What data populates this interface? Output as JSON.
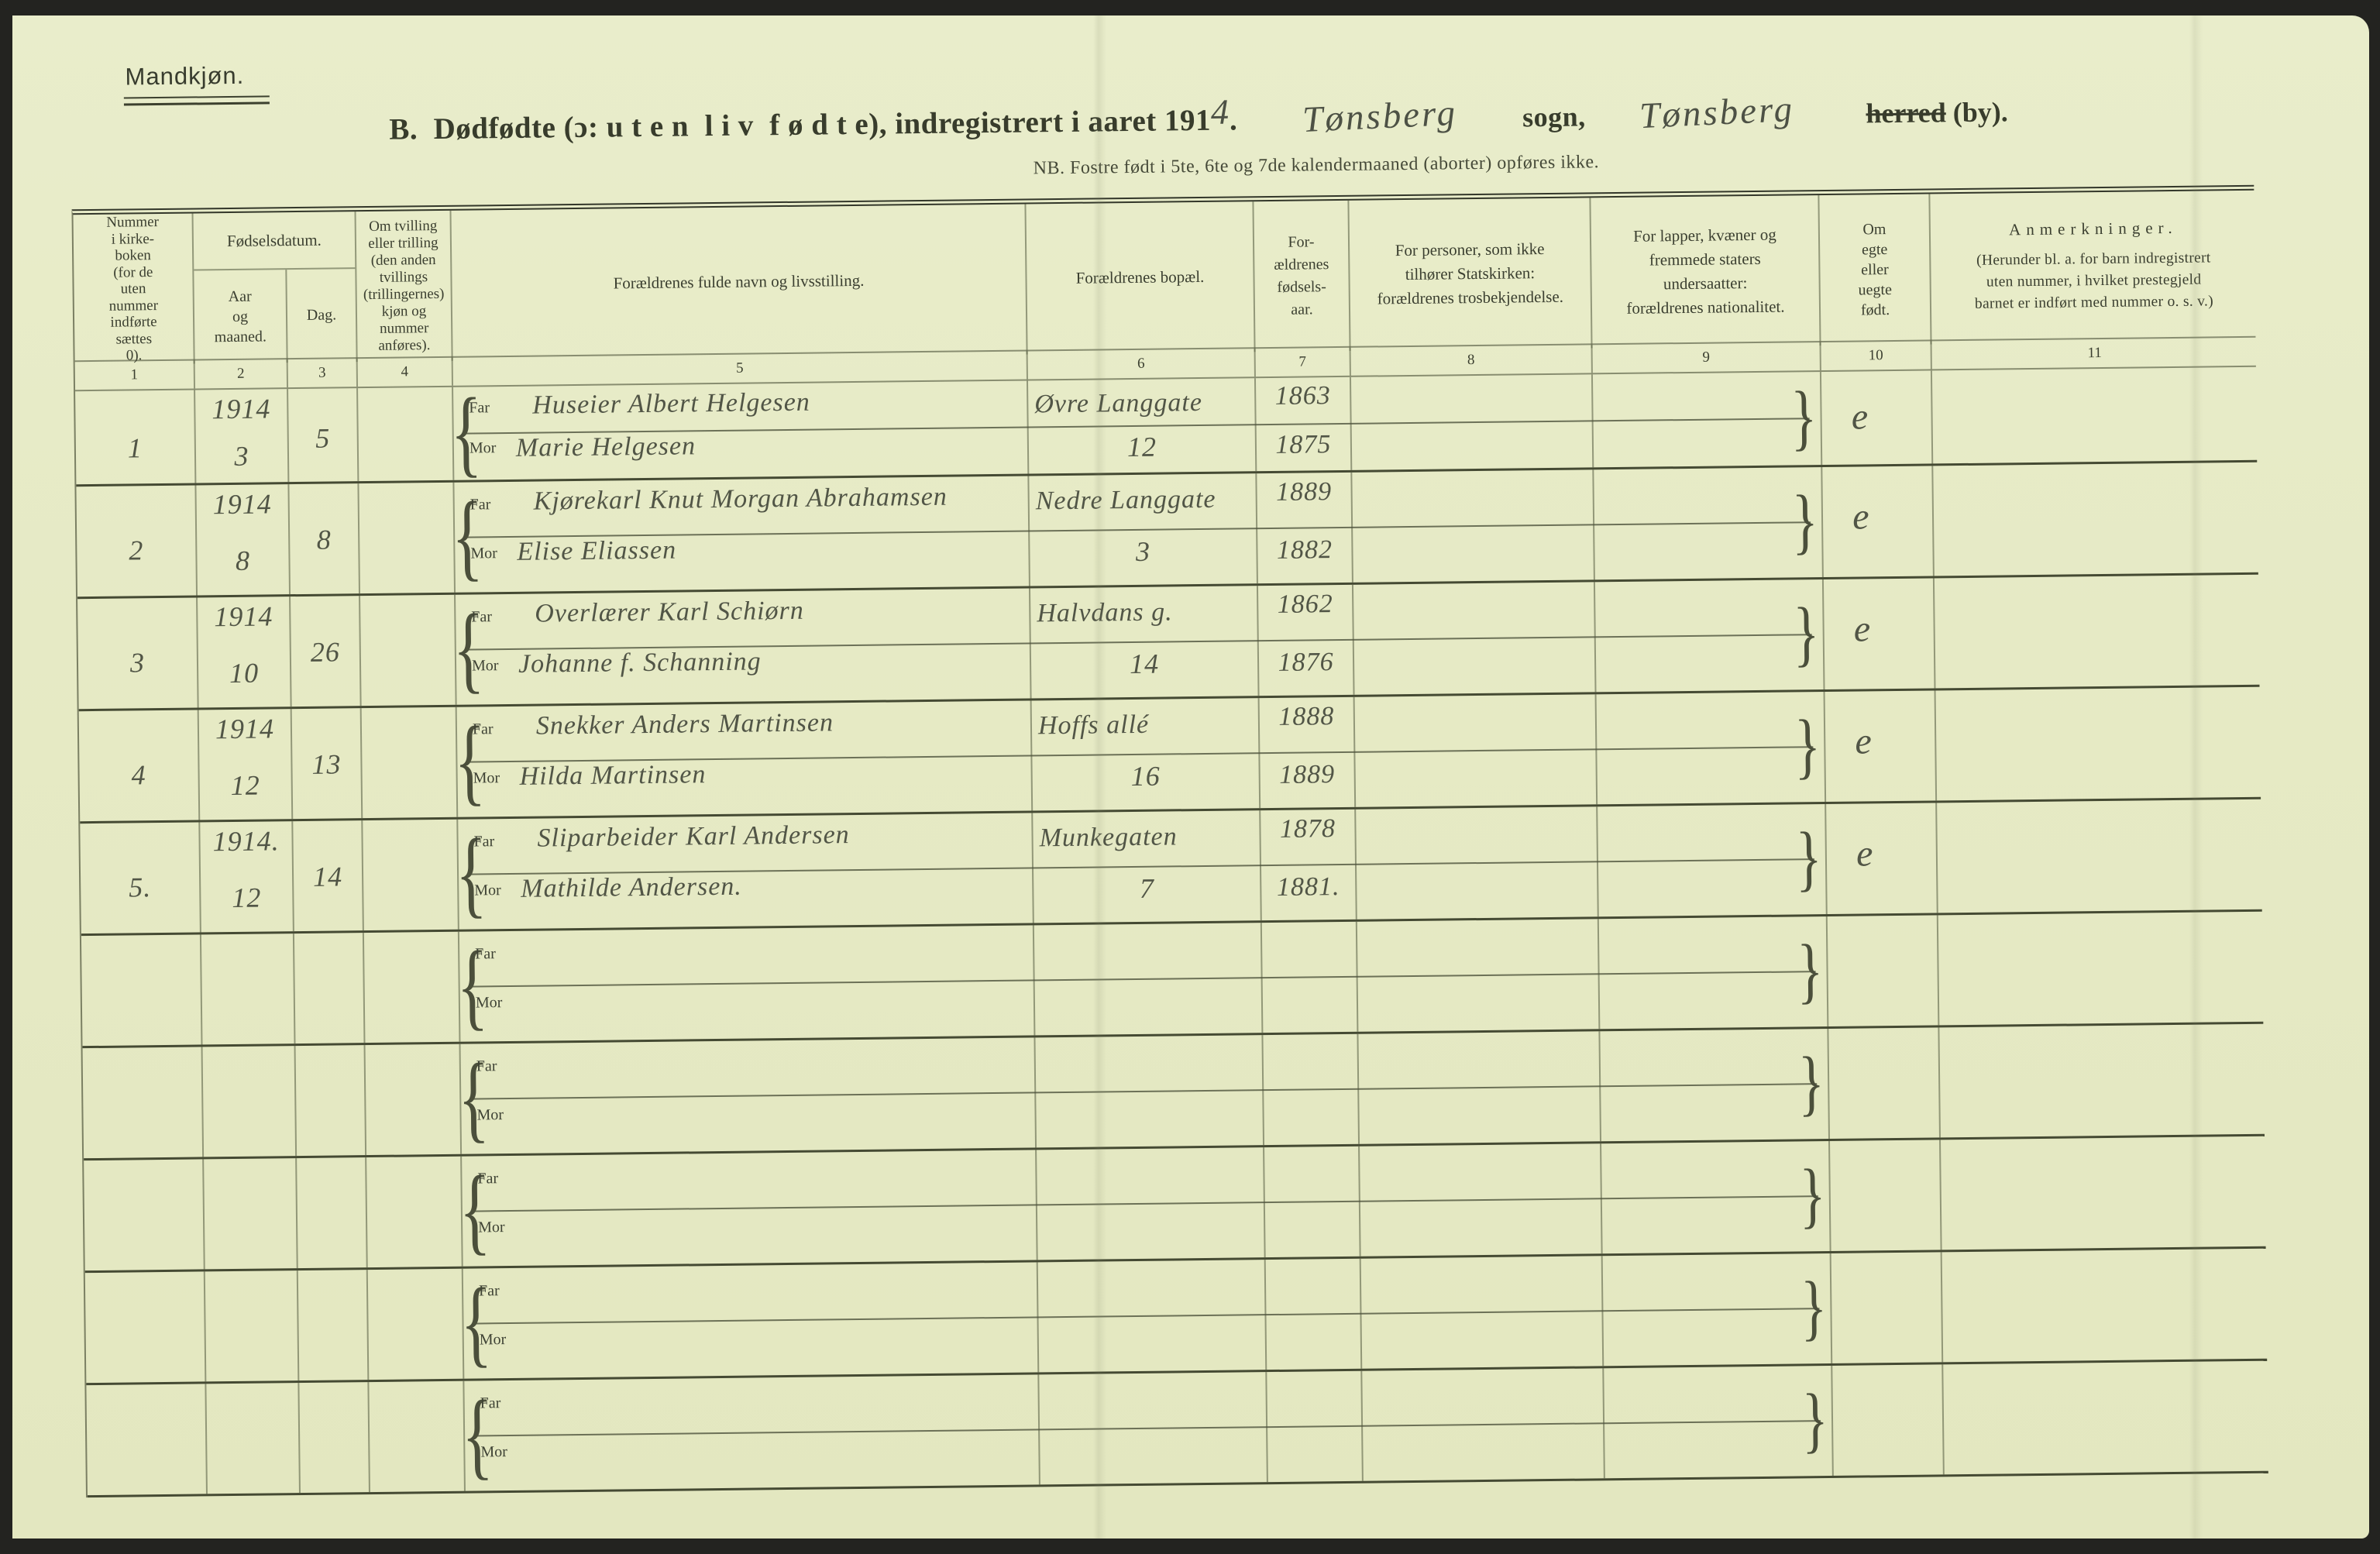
{
  "sheet": {
    "label": "Mandkjøn."
  },
  "title": {
    "printed_prefix": "B.  Dødfødte (ɔ: u t e n  l i v  f ø d t e), indregistrert i aaret 191",
    "year_digit": "4",
    "period": ".",
    "sogn_value": "Tønsberg",
    "sogn_label": "sogn,",
    "herred_value": "Tønsberg",
    "herred_struck": "herred",
    "herred_rest": " (by).",
    "note": "NB.  Fostre født i 5te, 6te og 7de kalendermaaned (aborter) opføres ikke."
  },
  "table": {
    "header": {
      "col1": "Nummer\ni kirke-\nboken\n(for de\nuten\nnummer\nindførte\nsættes\n0).",
      "fodselsdatum": "Fødselsdatum.",
      "aar": "Aar\nog\nmaaned.",
      "dag": "Dag.",
      "col4": "Om tvilling\neller trilling\n(den anden\ntvillings\n(trillingernes)\nkjøn og\nnummer\nanføres).",
      "col5": "Forældrenes fulde navn og livsstilling.",
      "col6": "Forældrenes bopæl.",
      "col7": "For-\nældrenes\nfødsels-\naar.",
      "col8": "For personer, som ikke\ntilhører Statskirken:\nforældrenes trosbekjendelse.",
      "col9": "For lapper, kvæner og\nfremmede staters\nundersaatter:\nforældrenes nationalitet.",
      "col10": "Om\negte\neller\nuegte\nfødt.",
      "col11_title": "Anmerkninger.",
      "col11_sub": "(Herunder bl. a. for barn indregistrert\nuten nummer, i hvilket prestegjeld\nbarnet er indført med nummer o. s. v.)"
    },
    "column_numbers": [
      "1",
      "2",
      "3",
      "4",
      "5",
      "6",
      "7",
      "8",
      "9",
      "10",
      "11"
    ],
    "far_label": "Far",
    "mor_label": "Mor",
    "rows": [
      {
        "num": "1",
        "year": "1914",
        "month": "3",
        "day": "5",
        "far": "Huseier Albert Helgesen",
        "mor": "Marie Helgesen",
        "bopel1": "Øvre Langgate",
        "bopel2": "12",
        "far_year": "1863",
        "mor_year": "1875",
        "egte": "e"
      },
      {
        "num": "2",
        "year": "1914",
        "month": "8",
        "day": "8",
        "far": "Kjørekarl Knut Morgan Abrahamsen",
        "mor": "Elise Eliassen",
        "bopel1": "Nedre Langgate",
        "bopel2": "3",
        "far_year": "1889",
        "mor_year": "1882",
        "egte": "e"
      },
      {
        "num": "3",
        "year": "1914",
        "month": "10",
        "day": "26",
        "far": "Overlærer Karl Schiørn",
        "mor": "Johanne f. Schanning",
        "bopel1": "Halvdans g.",
        "bopel2": "14",
        "far_year": "1862",
        "mor_year": "1876",
        "egte": "e"
      },
      {
        "num": "4",
        "year": "1914",
        "month": "12",
        "day": "13",
        "far": "Snekker Anders Martinsen",
        "mor": "Hilda Martinsen",
        "bopel1": "Hoffs allé",
        "bopel2": "16",
        "far_year": "1888",
        "mor_year": "1889",
        "egte": "e"
      },
      {
        "num": "5.",
        "year": "1914.",
        "month": "12",
        "day": "14",
        "far": "Sliparbeider Karl Andersen",
        "mor": "Mathilde Andersen.",
        "bopel1": "Munkegaten",
        "bopel2": "7",
        "far_year": "1878",
        "mor_year": "1881.",
        "egte": "e"
      },
      {
        "num": "",
        "year": "",
        "month": "",
        "day": "",
        "far": "",
        "mor": "",
        "bopel1": "",
        "bopel2": "",
        "far_year": "",
        "mor_year": "",
        "egte": ""
      },
      {
        "num": "",
        "year": "",
        "month": "",
        "day": "",
        "far": "",
        "mor": "",
        "bopel1": "",
        "bopel2": "",
        "far_year": "",
        "mor_year": "",
        "egte": ""
      },
      {
        "num": "",
        "year": "",
        "month": "",
        "day": "",
        "far": "",
        "mor": "",
        "bopel1": "",
        "bopel2": "",
        "far_year": "",
        "mor_year": "",
        "egte": ""
      },
      {
        "num": "",
        "year": "",
        "month": "",
        "day": "",
        "far": "",
        "mor": "",
        "bopel1": "",
        "bopel2": "",
        "far_year": "",
        "mor_year": "",
        "egte": ""
      },
      {
        "num": "",
        "year": "",
        "month": "",
        "day": "",
        "far": "",
        "mor": "",
        "bopel1": "",
        "bopel2": "",
        "far_year": "",
        "mor_year": "",
        "egte": ""
      }
    ]
  }
}
